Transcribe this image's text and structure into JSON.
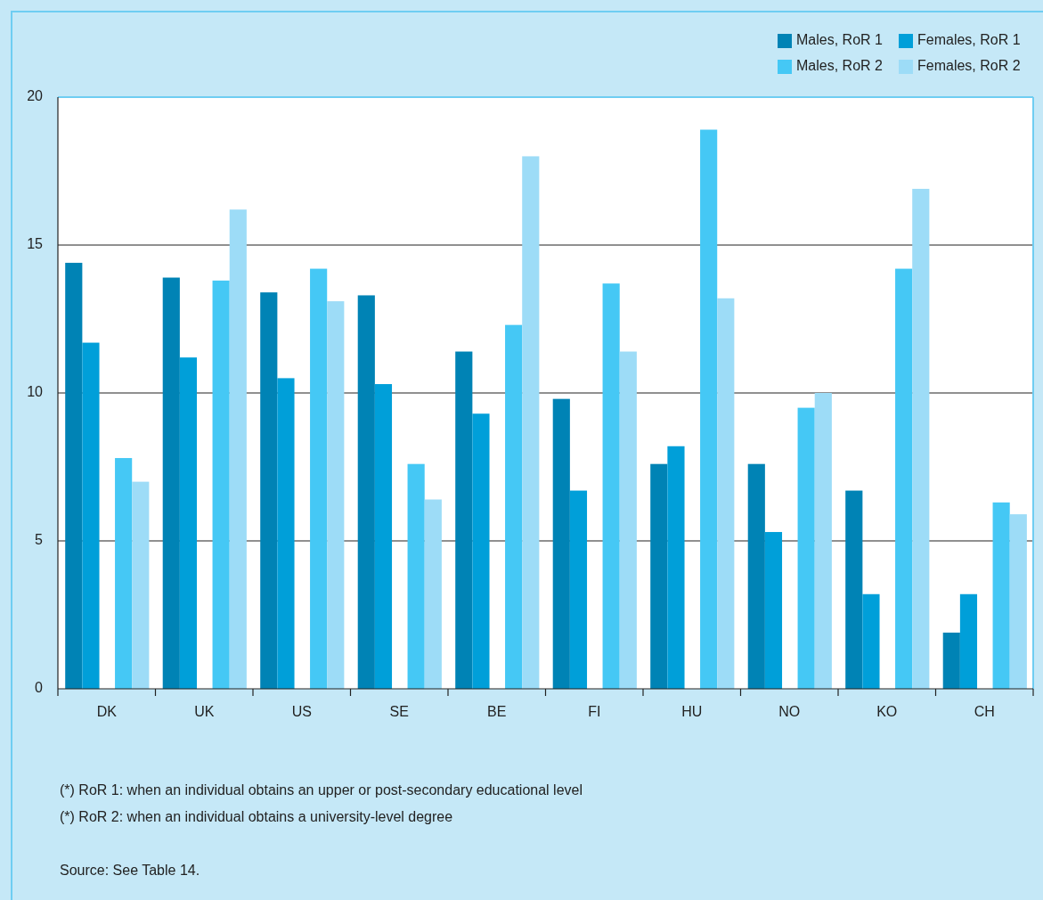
{
  "chart_data": {
    "type": "bar",
    "categories": [
      "DK",
      "UK",
      "US",
      "SE",
      "BE",
      "FI",
      "HU",
      "NO",
      "KO",
      "CH"
    ],
    "series": [
      {
        "name": "Males, RoR 1",
        "color": "#0083b5",
        "values": [
          14.4,
          13.9,
          13.4,
          13.3,
          11.4,
          9.8,
          7.6,
          7.6,
          6.7,
          1.9
        ]
      },
      {
        "name": "Females, RoR 1",
        "color": "#009fd9",
        "values": [
          11.7,
          11.2,
          10.5,
          10.3,
          9.3,
          6.7,
          8.2,
          5.3,
          3.2,
          3.2
        ]
      },
      {
        "name": "Males, RoR 2",
        "color": "#45c8f5",
        "values": [
          7.8,
          13.8,
          14.2,
          7.6,
          12.3,
          13.7,
          18.9,
          9.5,
          14.2,
          6.3
        ]
      },
      {
        "name": "Females, RoR 2",
        "color": "#9ddcf7",
        "values": [
          7.0,
          16.2,
          13.1,
          6.4,
          18.0,
          11.4,
          13.2,
          10.0,
          16.9,
          5.9
        ]
      }
    ],
    "ylim": [
      0,
      20
    ],
    "yticks": [
      0,
      5,
      10,
      15,
      20
    ],
    "grid": "y",
    "legend": "top right",
    "annotations": [
      "(*) RoR 1: when an individual obtains an upper or post-secondary educational level",
      "(*) RoR 2: when an individual obtains a university-level degree",
      "Source: See Table 14."
    ]
  }
}
